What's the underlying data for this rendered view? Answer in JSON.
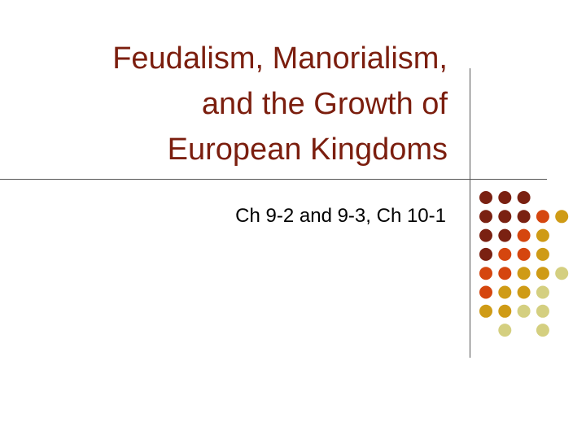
{
  "slide": {
    "title_lines": [
      "Feudalism, Manorialism,",
      "and the Growth of",
      "European Kingdoms"
    ],
    "subtitle": "Ch 9-2 and 9-3, Ch 10-1"
  },
  "colors": {
    "title": "#7b1e0e",
    "subtitle": "#000000",
    "dot_dark_brown": "#7a2112",
    "dot_orange_red": "#d5460f",
    "dot_mustard": "#cf9b16",
    "dot_pale_olive": "#d4cf80"
  },
  "decoration": {
    "dot_grid": [
      [
        "dot_dark_brown",
        "dot_dark_brown",
        "dot_dark_brown",
        null
      ],
      [
        "dot_dark_brown",
        "dot_dark_brown",
        "dot_dark_brown",
        "dot_orange_red",
        "dot_mustard"
      ],
      [
        "dot_dark_brown",
        "dot_dark_brown",
        "dot_orange_red",
        "dot_mustard",
        null
      ],
      [
        "dot_dark_brown",
        "dot_orange_red",
        "dot_orange_red",
        "dot_mustard",
        null
      ],
      [
        "dot_orange_red",
        "dot_orange_red",
        "dot_mustard",
        "dot_mustard",
        "dot_pale_olive"
      ],
      [
        "dot_orange_red",
        "dot_mustard",
        "dot_mustard",
        "dot_pale_olive",
        null
      ],
      [
        "dot_mustard",
        "dot_mustard",
        "dot_pale_olive",
        "dot_pale_olive",
        null
      ],
      [
        null,
        "dot_pale_olive",
        null,
        "dot_pale_olive",
        null
      ]
    ]
  }
}
